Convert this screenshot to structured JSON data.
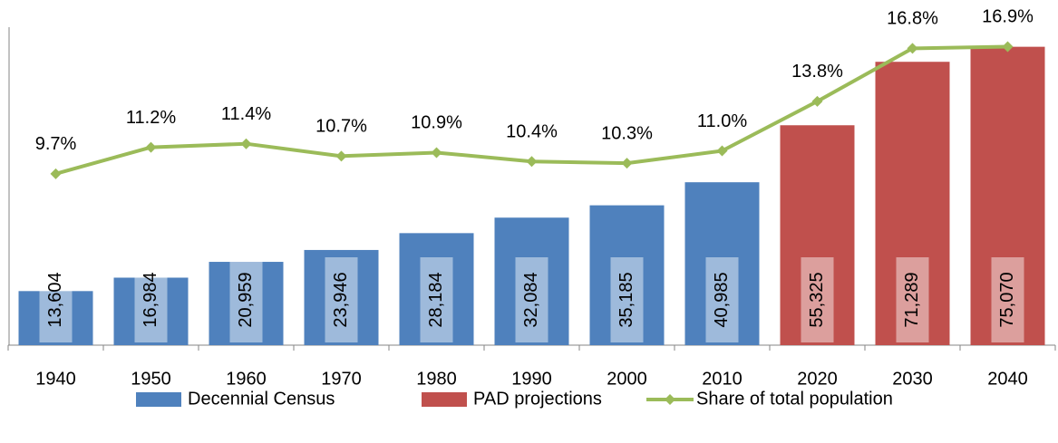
{
  "chart_data": {
    "type": "bar",
    "categories": [
      "1940",
      "1950",
      "1960",
      "1970",
      "1980",
      "1990",
      "2000",
      "2010",
      "2020",
      "2030",
      "2040"
    ],
    "series": [
      {
        "name": "Decennial Census",
        "color": "#4f81bd",
        "values": [
          13604,
          16984,
          20959,
          23946,
          28184,
          32084,
          35185,
          40985,
          null,
          null,
          null
        ],
        "value_labels": [
          "13,604",
          "16,984",
          "20,959",
          "23,946",
          "28,184",
          "32,084",
          "35,185",
          "40,985",
          null,
          null,
          null
        ]
      },
      {
        "name": "PAD projections",
        "color": "#c0504d",
        "values": [
          null,
          null,
          null,
          null,
          null,
          null,
          null,
          null,
          55325,
          71289,
          75070
        ],
        "value_labels": [
          null,
          null,
          null,
          null,
          null,
          null,
          null,
          null,
          "55,325",
          "71,289",
          "75,070"
        ]
      },
      {
        "name": "Share of total population",
        "color": "#9bbb59",
        "type": "line",
        "axis": "y2",
        "values": [
          9.7,
          11.2,
          11.4,
          10.7,
          10.9,
          10.4,
          10.3,
          11.0,
          13.8,
          16.8,
          16.9
        ],
        "value_labels": [
          "9.7%",
          "11.2%",
          "11.4%",
          "10.7%",
          "10.9%",
          "10.4%",
          "10.3%",
          "11.0%",
          "13.8%",
          "16.8%",
          "16.9%"
        ]
      }
    ],
    "ylim": [
      0,
      80000
    ],
    "y2lim": [
      0,
      18
    ],
    "grid": false,
    "legend": "bottom"
  }
}
